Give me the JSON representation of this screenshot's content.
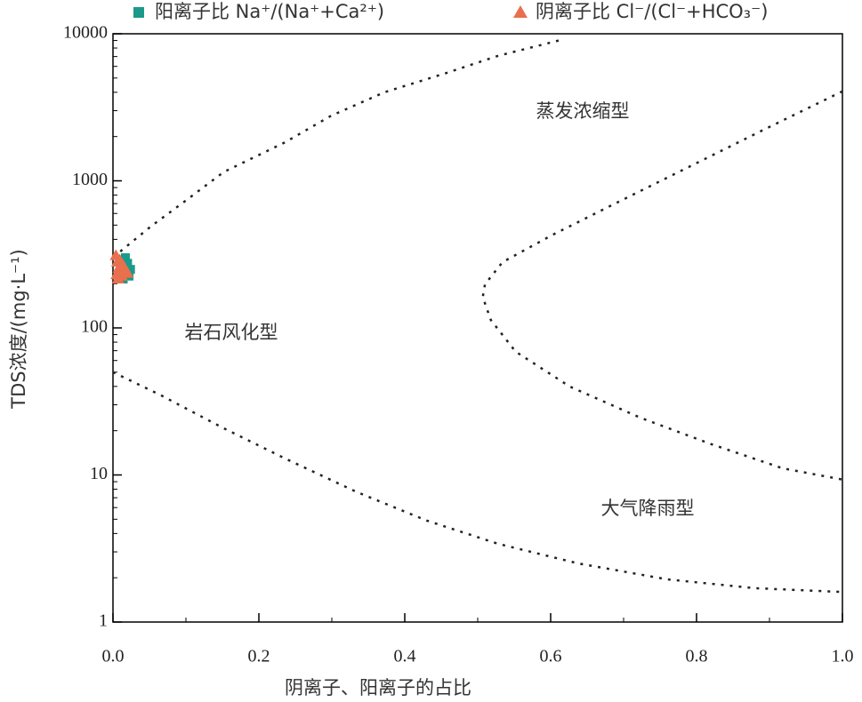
{
  "chart_data": {
    "type": "scatter",
    "xlabel": "阴离子、阳离子的占比",
    "ylabel": "TDS浓度/(mg·L⁻¹)",
    "xlim": [
      0,
      1
    ],
    "ylim": [
      1,
      10000
    ],
    "log_y": true,
    "xticks": [
      {
        "value": 0,
        "label": "0.0"
      },
      {
        "value": 0.2,
        "label": "0.2"
      },
      {
        "value": 0.4,
        "label": "0.4"
      },
      {
        "value": 0.6,
        "label": "0.6"
      },
      {
        "value": 0.8,
        "label": "0.8"
      },
      {
        "value": 1,
        "label": "1.0"
      }
    ],
    "yticks": [
      1,
      10,
      100,
      1000,
      10000
    ],
    "annotations": [
      "蒸发浓缩型",
      "岩石风化型",
      "大气降雨型"
    ],
    "series": [
      {
        "name": "阳离子比 Na⁺/(Na⁺+Ca²⁺)",
        "color": "#1a9a8a",
        "marker": "square",
        "x": [
          0.012,
          0.015,
          0.018,
          0.02,
          0.022,
          0.014,
          0.017,
          0.024,
          0.011,
          0.019
        ],
        "values": [
          290,
          260,
          240,
          275,
          225,
          215,
          300,
          250,
          235,
          265
        ]
      },
      {
        "name": "阴离子比 Cl⁻/(Cl⁻+HCO₃⁻)",
        "color": "#e8704e",
        "marker": "triangle",
        "x": [
          0.004,
          0.006,
          0.008,
          0.01,
          0.012,
          0.015,
          0.005,
          0.009,
          0.018,
          0.007,
          0.013,
          0.02
        ],
        "values": [
          310,
          280,
          255,
          240,
          225,
          260,
          230,
          290,
          245,
          215,
          270,
          235
        ]
      }
    ],
    "boundary_curves": [
      {
        "x": [
          0.01,
          0.052,
          0.101,
          0.152,
          0.235,
          0.299,
          0.372,
          0.455,
          0.528,
          0.616
        ],
        "values": [
          331,
          490,
          741,
          1150,
          1820,
          2770,
          4000,
          5370,
          7080,
          9120
        ]
      },
      {
        "x": [
          0,
          0.065,
          0.15,
          0.235,
          0.333,
          0.43,
          0.528,
          0.638,
          0.76,
          0.88,
          1.0
        ],
        "values": [
          50,
          35,
          21,
          13,
          7.7,
          4.9,
          3.4,
          2.5,
          1.95,
          1.7,
          1.6
        ]
      },
      {
        "x": [
          1.0,
          0.894,
          0.796,
          0.698,
          0.601,
          0.534,
          0.51,
          0.507,
          0.518,
          0.552,
          0.626,
          0.723,
          0.82,
          0.918,
          1.0
        ],
        "values": [
          4060,
          2250,
          1290,
          740,
          425,
          280,
          198,
          162,
          113,
          69,
          40,
          24.5,
          16.2,
          11.1,
          9.3
        ]
      }
    ]
  }
}
